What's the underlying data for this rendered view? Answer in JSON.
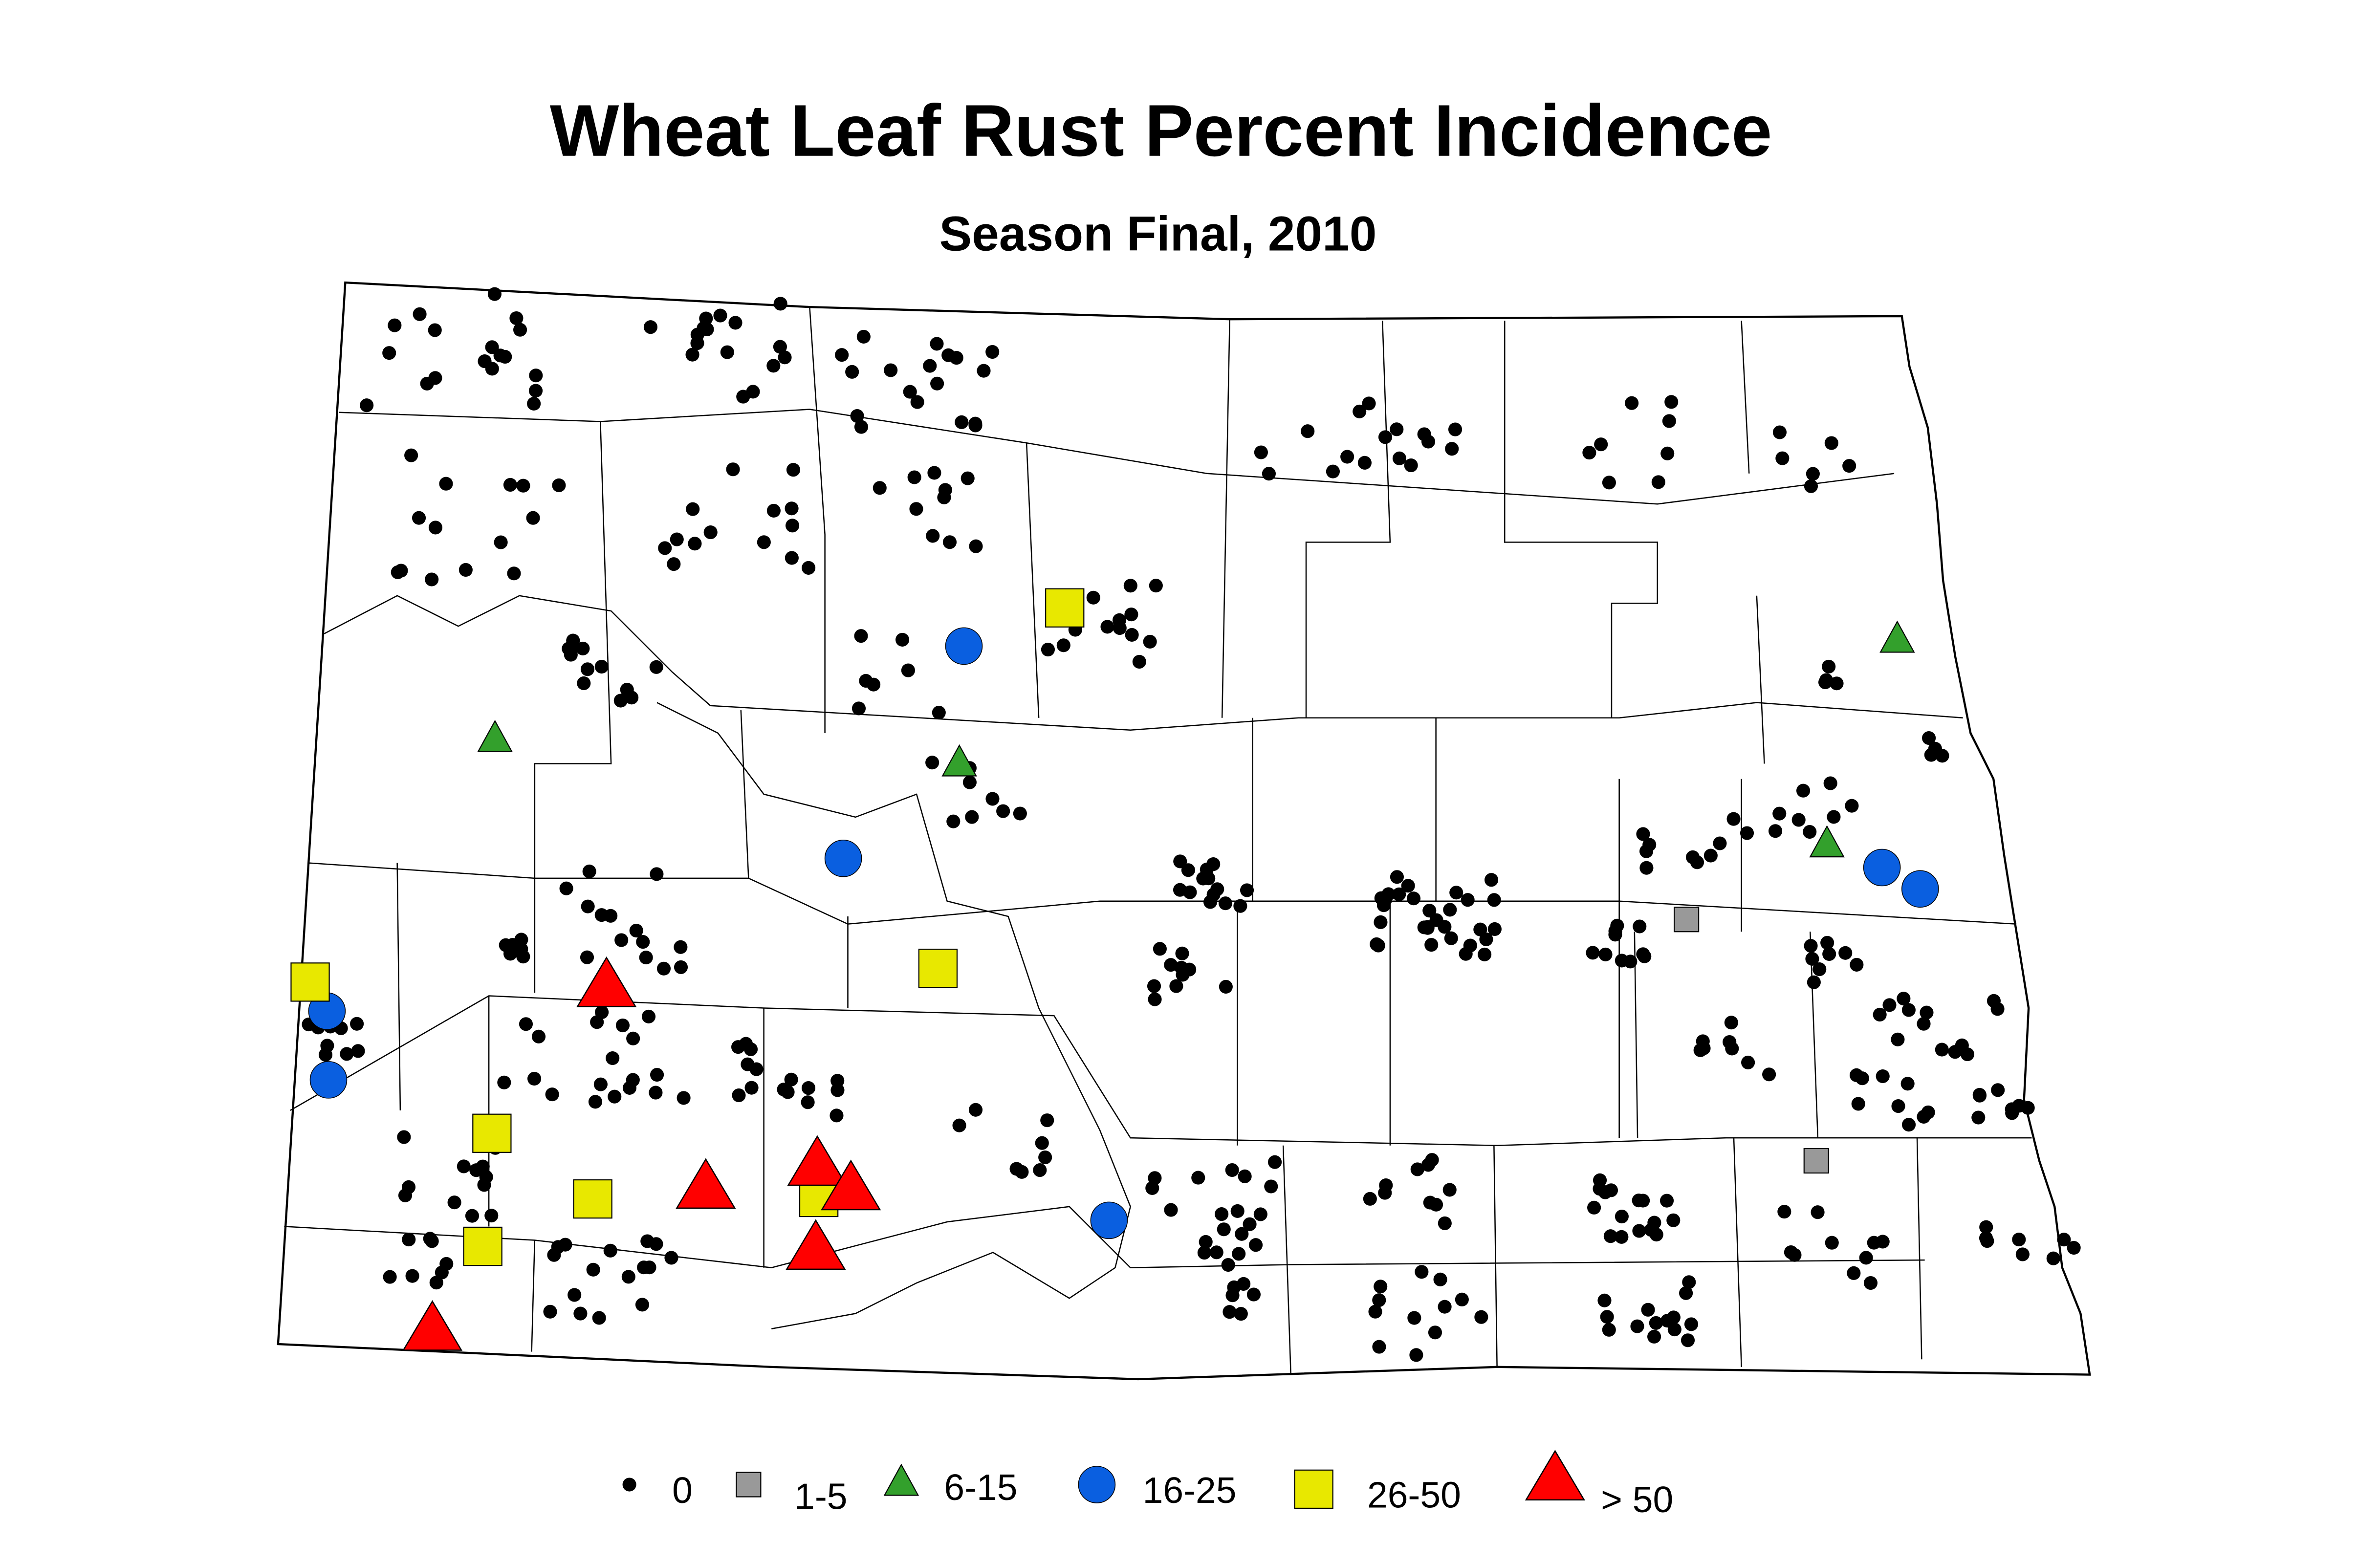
{
  "title": "Wheat Leaf Rust Percent Incidence",
  "subtitle": "Season Final, 2010",
  "legend": [
    {
      "label": "0",
      "color": "#000000"
    },
    {
      "label": "1-5",
      "color": "#999999"
    },
    {
      "label": "6-15",
      "color": "#33a02c"
    },
    {
      "label": "16-25",
      "color": "#0a5fe0"
    },
    {
      "label": "26-50",
      "color": "#e8e800"
    },
    {
      "label": "> 50",
      "color": "#ff0000"
    }
  ]
}
